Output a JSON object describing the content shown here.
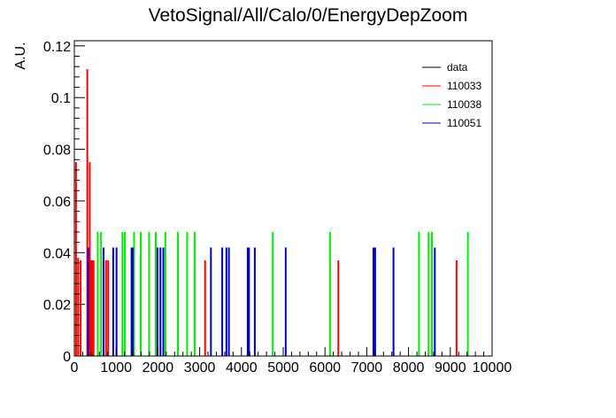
{
  "chart_data": {
    "type": "bar",
    "title": "VetoSignal/All/Calo/0/EnergyDepZoom",
    "xlabel": "",
    "ylabel": "A.U.",
    "xlim": [
      0,
      10000
    ],
    "ylim": [
      0,
      0.122
    ],
    "grid": false,
    "legend_position": "top-right",
    "x_ticks": [
      0,
      1000,
      2000,
      3000,
      4000,
      5000,
      6000,
      7000,
      8000,
      9000,
      10000
    ],
    "x_tick_labels": [
      "0",
      "1000",
      "2000",
      "3000",
      "4000",
      "5000",
      "6000",
      "7000",
      "8000",
      "9000",
      "10000"
    ],
    "y_ticks": [
      0,
      0.02,
      0.04,
      0.06,
      0.08,
      0.1,
      0.12
    ],
    "y_tick_labels": [
      "0",
      "0.02",
      "0.04",
      "0.06",
      "0.08",
      "0.1",
      "0.12"
    ],
    "legend": [
      {
        "name": "data",
        "color": "#000000"
      },
      {
        "name": "110033",
        "color": "#ff0000"
      },
      {
        "name": "110038",
        "color": "#00ee00"
      },
      {
        "name": "110051",
        "color": "#0000cc"
      }
    ],
    "series": [
      {
        "name": "110033",
        "color": "#ff0000",
        "bins": [
          {
            "x": 40,
            "y": 0.075
          },
          {
            "x": 90,
            "y": 0.038
          },
          {
            "x": 150,
            "y": 0.037
          },
          {
            "x": 310,
            "y": 0.111
          },
          {
            "x": 370,
            "y": 0.075
          },
          {
            "x": 400,
            "y": 0.037
          },
          {
            "x": 430,
            "y": 0.037
          },
          {
            "x": 460,
            "y": 0.037
          },
          {
            "x": 760,
            "y": 0.037
          },
          {
            "x": 810,
            "y": 0.037
          },
          {
            "x": 3130,
            "y": 0.037
          },
          {
            "x": 6320,
            "y": 0.037
          },
          {
            "x": 9150,
            "y": 0.037
          }
        ]
      },
      {
        "name": "110038",
        "color": "#00ee00",
        "bins": [
          {
            "x": 560,
            "y": 0.048
          },
          {
            "x": 640,
            "y": 0.048
          },
          {
            "x": 1150,
            "y": 0.048
          },
          {
            "x": 1210,
            "y": 0.048
          },
          {
            "x": 1430,
            "y": 0.048
          },
          {
            "x": 1590,
            "y": 0.048
          },
          {
            "x": 1790,
            "y": 0.048
          },
          {
            "x": 1950,
            "y": 0.048
          },
          {
            "x": 2180,
            "y": 0.048
          },
          {
            "x": 2480,
            "y": 0.048
          },
          {
            "x": 2700,
            "y": 0.048
          },
          {
            "x": 2880,
            "y": 0.048
          },
          {
            "x": 4750,
            "y": 0.048
          },
          {
            "x": 6120,
            "y": 0.048
          },
          {
            "x": 8250,
            "y": 0.048
          },
          {
            "x": 8480,
            "y": 0.048
          },
          {
            "x": 8560,
            "y": 0.048
          },
          {
            "x": 9420,
            "y": 0.048
          }
        ]
      },
      {
        "name": "110051",
        "color": "#0000cc",
        "bins": [
          {
            "x": 330,
            "y": 0.042
          },
          {
            "x": 700,
            "y": 0.042
          },
          {
            "x": 930,
            "y": 0.042
          },
          {
            "x": 1010,
            "y": 0.042
          },
          {
            "x": 1370,
            "y": 0.042
          },
          {
            "x": 1400,
            "y": 0.042
          },
          {
            "x": 1990,
            "y": 0.042
          },
          {
            "x": 2060,
            "y": 0.042
          },
          {
            "x": 2130,
            "y": 0.042
          },
          {
            "x": 3270,
            "y": 0.042
          },
          {
            "x": 3540,
            "y": 0.042
          },
          {
            "x": 3640,
            "y": 0.042
          },
          {
            "x": 3700,
            "y": 0.042
          },
          {
            "x": 4150,
            "y": 0.042
          },
          {
            "x": 4180,
            "y": 0.042
          },
          {
            "x": 4320,
            "y": 0.042
          },
          {
            "x": 5060,
            "y": 0.042
          },
          {
            "x": 7160,
            "y": 0.042
          },
          {
            "x": 7200,
            "y": 0.042
          },
          {
            "x": 7640,
            "y": 0.042
          },
          {
            "x": 8630,
            "y": 0.042
          }
        ]
      }
    ]
  }
}
